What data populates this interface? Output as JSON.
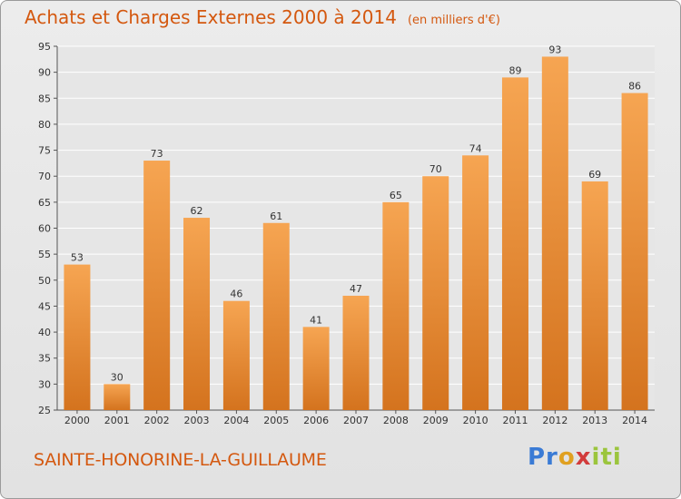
{
  "header": {
    "title": "Achats et Charges Externes 2000 à 2014",
    "unit": "(en milliers d'€)"
  },
  "footer": {
    "commune": "SAINTE-HONORINE-LA-GUILLAUME",
    "logo": "Proxiti"
  },
  "colors": {
    "bar_light": "#f6a552",
    "bar_dark": "#d4731e",
    "title": "#d4580f",
    "grid": "#ffffff"
  },
  "chart_data": {
    "type": "bar",
    "title": "Achats et Charges Externes 2000 à 2014",
    "subtitle": "(en milliers d'€)",
    "xlabel": "",
    "ylabel": "",
    "categories": [
      "2000",
      "2001",
      "2002",
      "2003",
      "2004",
      "2005",
      "2006",
      "2007",
      "2008",
      "2009",
      "2010",
      "2011",
      "2012",
      "2013",
      "2014"
    ],
    "values": [
      53,
      30,
      73,
      62,
      46,
      61,
      41,
      47,
      65,
      70,
      74,
      89,
      93,
      69,
      86
    ],
    "ylim": [
      25,
      95
    ],
    "yticks": [
      25,
      30,
      35,
      40,
      45,
      50,
      55,
      60,
      65,
      70,
      75,
      80,
      85,
      90,
      95
    ],
    "grid": true,
    "data_labels": true
  }
}
